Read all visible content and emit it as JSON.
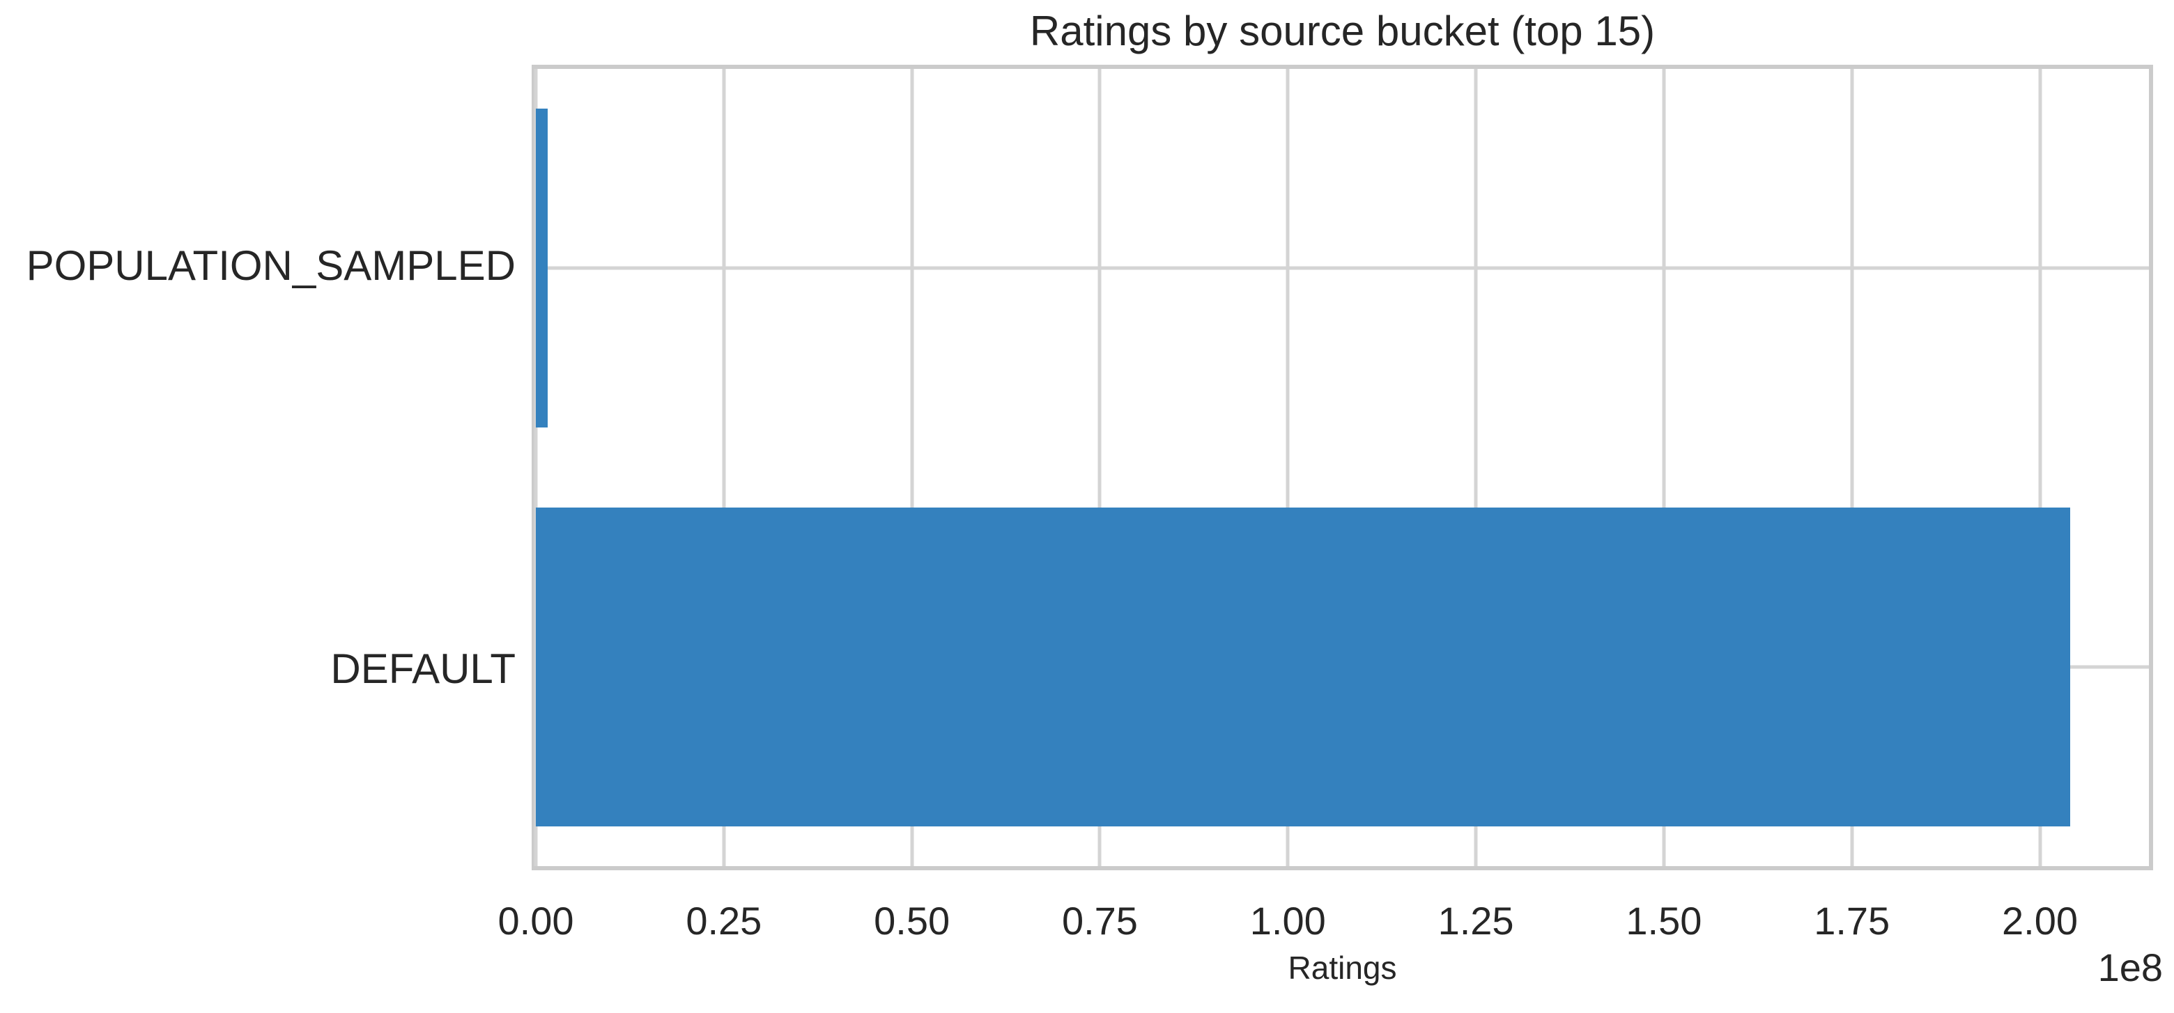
{
  "figure": {
    "background": "#ffffff"
  },
  "chart_data": {
    "type": "bar",
    "orientation": "horizontal",
    "title": "Ratings by source bucket (top 15)",
    "xlabel": "Ratings",
    "ylabel": "",
    "categories": [
      "POPULATION_SAMPLED",
      "DEFAULT"
    ],
    "values": [
      1600000,
      204000000
    ],
    "xlim": [
      0,
      214500000
    ],
    "xticks": {
      "values": [
        0,
        25000000,
        50000000,
        75000000,
        100000000,
        125000000,
        150000000,
        175000000,
        200000000
      ],
      "labels": [
        "0.00",
        "0.25",
        "0.50",
        "0.75",
        "1.00",
        "1.25",
        "1.50",
        "1.75",
        "2.00"
      ],
      "offset": "1e8"
    },
    "grid": true,
    "legend": false,
    "bar_height_fraction": 0.8,
    "bar_color": "#3481be",
    "grid_color": "#d4d4d4",
    "spine_color": "#cbcbcb",
    "text_color": "#262626",
    "background": "#ffffff"
  }
}
